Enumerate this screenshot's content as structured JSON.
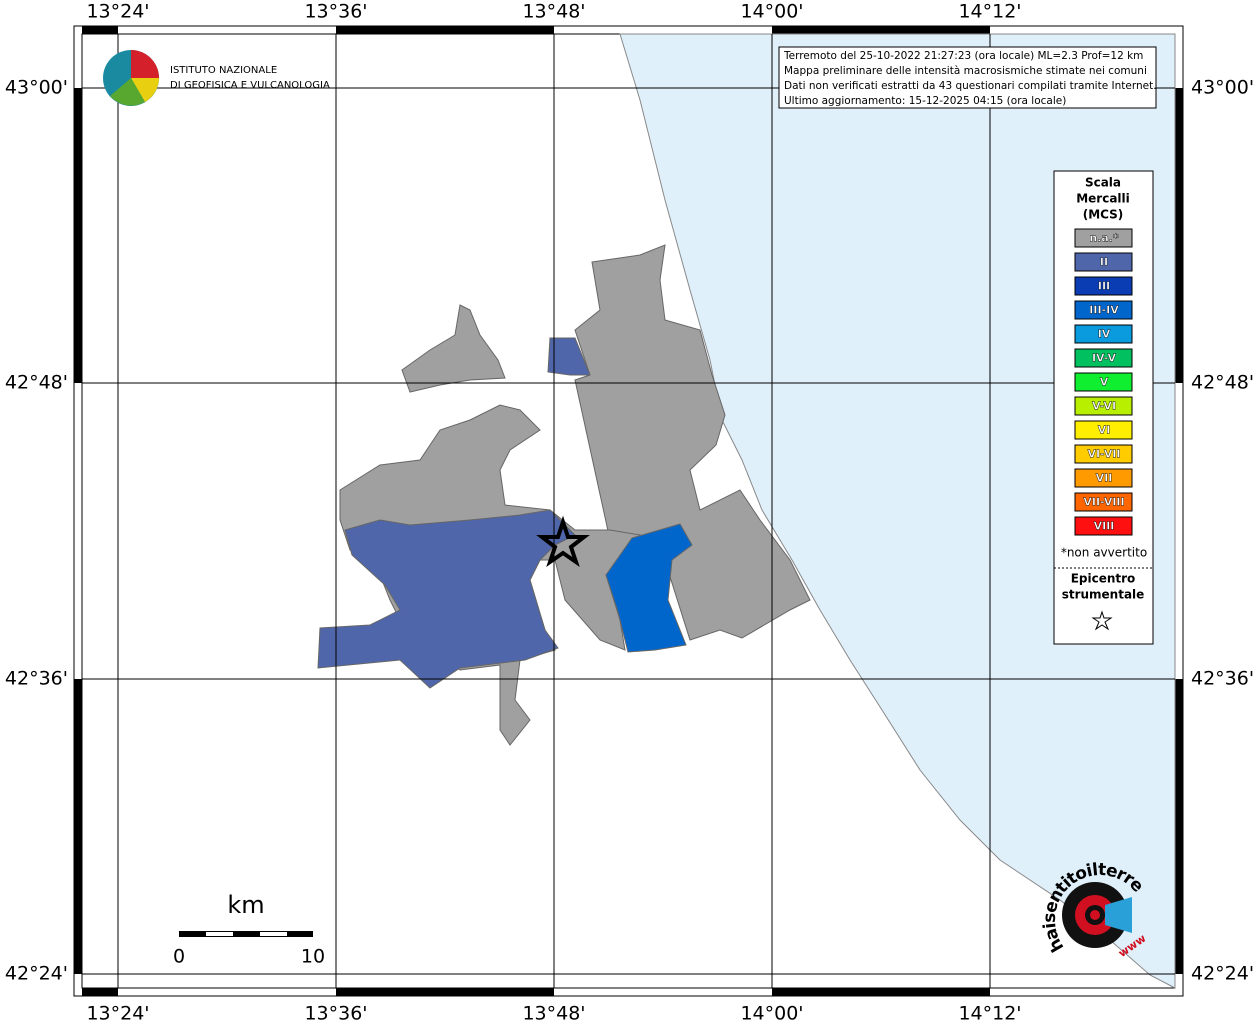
{
  "map": {
    "lon_labels": [
      "13°24'",
      "13°36'",
      "13°48'",
      "14°00'",
      "14°12'"
    ],
    "lat_labels": [
      "43°00'",
      "42°48'",
      "42°36'",
      "42°24'"
    ],
    "info": [
      "Terremoto del 25-10-2022 21:27:23 (ora locale) ML=2.3 Prof=12 km",
      "Mappa preliminare delle intensità macrosismiche stimate nei comuni",
      "Dati non verificati estratti da 43 questionari compilati tramite Internet.",
      "Ultimo aggiornamento: 15-12-2025 04:15 (ora locale)"
    ],
    "logo": [
      "ISTITUTO NAZIONALE",
      "DI GEOFISICA E VULCANOLOGIA"
    ],
    "legend": {
      "title": [
        "Scala",
        "Mercalli",
        "(MCS)"
      ],
      "items": [
        {
          "label": "n.a.*",
          "color": "#a0a0a0"
        },
        {
          "label": "II",
          "color": "#5066ab"
        },
        {
          "label": "III",
          "color": "#0a3cb4"
        },
        {
          "label": "III-IV",
          "color": "#0066cc"
        },
        {
          "label": "IV",
          "color": "#0a9ade"
        },
        {
          "label": "IV-V",
          "color": "#00c060"
        },
        {
          "label": "V",
          "color": "#10ee30"
        },
        {
          "label": "V-VI",
          "color": "#b8ee00"
        },
        {
          "label": "VI",
          "color": "#ffee00"
        },
        {
          "label": "VI-VII",
          "color": "#ffcc00"
        },
        {
          "label": "VII",
          "color": "#ff9a00"
        },
        {
          "label": "VII-VIII",
          "color": "#ff6600"
        },
        {
          "label": "VIII",
          "color": "#ff1010"
        }
      ],
      "note": "*non avvertito",
      "epicenter": [
        "Epicentro",
        "strumentale"
      ]
    },
    "scale": {
      "unit": "km",
      "labels": [
        "0",
        "10"
      ]
    },
    "badge": {
      "ring": "haisentitoilterremoto.it",
      "www": "www"
    }
  }
}
